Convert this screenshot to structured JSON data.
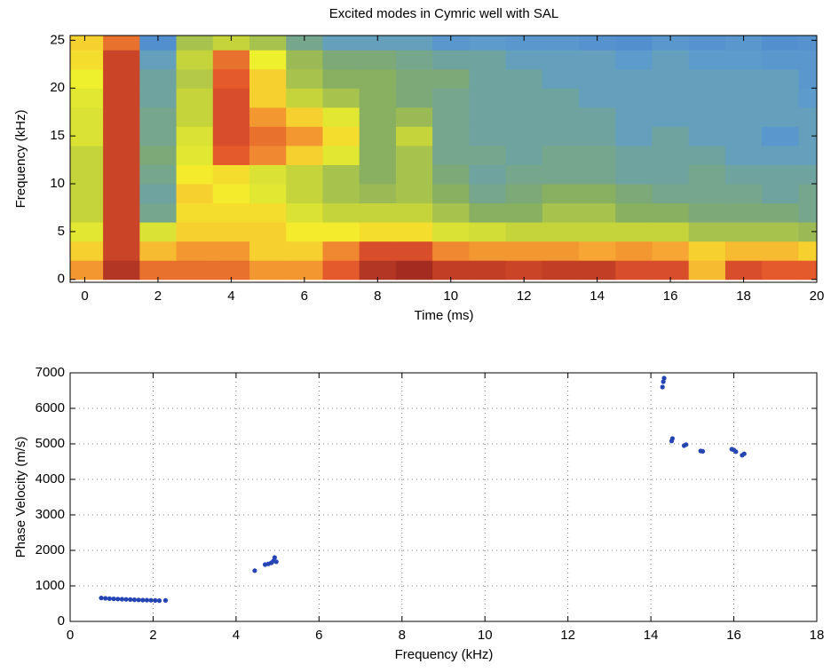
{
  "chart_data": [
    {
      "type": "heatmap",
      "title": "Excited modes in Cymric well with SAL",
      "x_label": "Time (ms)",
      "y_label": "Frequency (kHz)",
      "x": [
        0,
        1,
        2,
        3,
        4,
        5,
        6,
        7,
        8,
        9,
        10,
        11,
        12,
        13,
        14,
        15,
        16,
        17,
        18,
        19,
        20
      ],
      "y": [
        1,
        3,
        5,
        7,
        9,
        11,
        13,
        15,
        17,
        19,
        21,
        23,
        25
      ],
      "z": [
        [
          0.8,
          0.95,
          0.85,
          0.85,
          0.85,
          0.8,
          0.8,
          0.88,
          0.95,
          0.97,
          0.93,
          0.93,
          0.92,
          0.93,
          0.93,
          0.9,
          0.9,
          0.75,
          0.9,
          0.88,
          0.88
        ],
        [
          0.72,
          0.92,
          0.75,
          0.8,
          0.8,
          0.72,
          0.72,
          0.82,
          0.9,
          0.9,
          0.82,
          0.8,
          0.8,
          0.8,
          0.78,
          0.8,
          0.78,
          0.72,
          0.75,
          0.75,
          0.72
        ],
        [
          0.62,
          0.92,
          0.6,
          0.72,
          0.72,
          0.72,
          0.68,
          0.68,
          0.7,
          0.7,
          0.6,
          0.58,
          0.55,
          0.55,
          0.55,
          0.55,
          0.55,
          0.5,
          0.5,
          0.5,
          0.48
        ],
        [
          0.55,
          0.92,
          0.4,
          0.7,
          0.7,
          0.7,
          0.6,
          0.55,
          0.55,
          0.55,
          0.5,
          0.45,
          0.45,
          0.5,
          0.5,
          0.45,
          0.45,
          0.42,
          0.42,
          0.42,
          0.4
        ],
        [
          0.55,
          0.92,
          0.38,
          0.72,
          0.68,
          0.62,
          0.55,
          0.5,
          0.48,
          0.5,
          0.45,
          0.4,
          0.42,
          0.45,
          0.45,
          0.42,
          0.4,
          0.4,
          0.4,
          0.38,
          0.4
        ],
        [
          0.55,
          0.92,
          0.4,
          0.68,
          0.7,
          0.6,
          0.55,
          0.5,
          0.45,
          0.5,
          0.42,
          0.38,
          0.4,
          0.4,
          0.4,
          0.38,
          0.38,
          0.4,
          0.38,
          0.38,
          0.38
        ],
        [
          0.55,
          0.92,
          0.42,
          0.62,
          0.88,
          0.82,
          0.72,
          0.62,
          0.45,
          0.5,
          0.4,
          0.4,
          0.38,
          0.4,
          0.4,
          0.38,
          0.38,
          0.38,
          0.35,
          0.35,
          0.35
        ],
        [
          0.6,
          0.92,
          0.4,
          0.6,
          0.9,
          0.85,
          0.8,
          0.7,
          0.45,
          0.55,
          0.4,
          0.38,
          0.38,
          0.38,
          0.38,
          0.35,
          0.38,
          0.35,
          0.35,
          0.3,
          0.35
        ],
        [
          0.6,
          0.92,
          0.4,
          0.55,
          0.9,
          0.8,
          0.72,
          0.62,
          0.45,
          0.48,
          0.4,
          0.38,
          0.38,
          0.38,
          0.38,
          0.35,
          0.35,
          0.35,
          0.35,
          0.35,
          0.35
        ],
        [
          0.62,
          0.92,
          0.38,
          0.55,
          0.9,
          0.72,
          0.55,
          0.5,
          0.45,
          0.42,
          0.4,
          0.38,
          0.38,
          0.38,
          0.35,
          0.35,
          0.35,
          0.35,
          0.35,
          0.35,
          0.33
        ],
        [
          0.65,
          0.92,
          0.38,
          0.52,
          0.88,
          0.72,
          0.5,
          0.45,
          0.45,
          0.42,
          0.42,
          0.38,
          0.38,
          0.35,
          0.35,
          0.35,
          0.35,
          0.35,
          0.35,
          0.35,
          0.3
        ],
        [
          0.7,
          0.92,
          0.35,
          0.55,
          0.85,
          0.65,
          0.48,
          0.42,
          0.42,
          0.4,
          0.38,
          0.38,
          0.35,
          0.35,
          0.35,
          0.33,
          0.35,
          0.33,
          0.33,
          0.3,
          0.3
        ],
        [
          0.72,
          0.85,
          0.25,
          0.5,
          0.55,
          0.5,
          0.4,
          0.35,
          0.35,
          0.35,
          0.3,
          0.33,
          0.3,
          0.3,
          0.28,
          0.25,
          0.3,
          0.28,
          0.3,
          0.25,
          0.28
        ]
      ],
      "colormap": [
        "#1a2a8a",
        "#2f5db8",
        "#4d8ad0",
        "#5e9ccc",
        "#86ad62",
        "#c9d63a",
        "#f4f42c",
        "#f7a833",
        "#e2532b",
        "#8c1c1c"
      ],
      "xlim": [
        -0.4,
        20
      ],
      "ylim": [
        -0.3,
        25.5
      ],
      "xticks": [
        0,
        2,
        4,
        6,
        8,
        10,
        12,
        14,
        16,
        18,
        20
      ],
      "yticks": [
        0,
        5,
        10,
        15,
        20,
        25
      ],
      "grid": false
    },
    {
      "type": "scatter",
      "x_label": "Frequency (kHz)",
      "y_label": "Phase Velocity (m/s)",
      "color": "#2545b5",
      "x": [
        0.75,
        0.85,
        0.95,
        1.05,
        1.15,
        1.25,
        1.35,
        1.45,
        1.55,
        1.65,
        1.75,
        1.85,
        1.95,
        2.05,
        2.15,
        2.3,
        4.45,
        4.7,
        4.78,
        4.85,
        4.9,
        4.93,
        4.97,
        14.28,
        14.3,
        14.32,
        14.5,
        14.52,
        14.8,
        14.85,
        15.2,
        15.25,
        15.95,
        16.0,
        16.05,
        16.2,
        16.25
      ],
      "y": [
        660,
        650,
        640,
        635,
        630,
        625,
        620,
        615,
        610,
        605,
        600,
        598,
        595,
        590,
        585,
        590,
        1430,
        1600,
        1620,
        1650,
        1700,
        1800,
        1680,
        6600,
        6750,
        6850,
        5080,
        5150,
        4950,
        4980,
        4800,
        4790,
        4850,
        4830,
        4780,
        4680,
        4720
      ],
      "xlim": [
        0,
        18
      ],
      "ylim": [
        0,
        7000
      ],
      "xticks": [
        0,
        2,
        4,
        6,
        8,
        10,
        12,
        14,
        16,
        18
      ],
      "yticks": [
        0,
        1000,
        2000,
        3000,
        4000,
        5000,
        6000,
        7000
      ],
      "grid": true
    }
  ]
}
